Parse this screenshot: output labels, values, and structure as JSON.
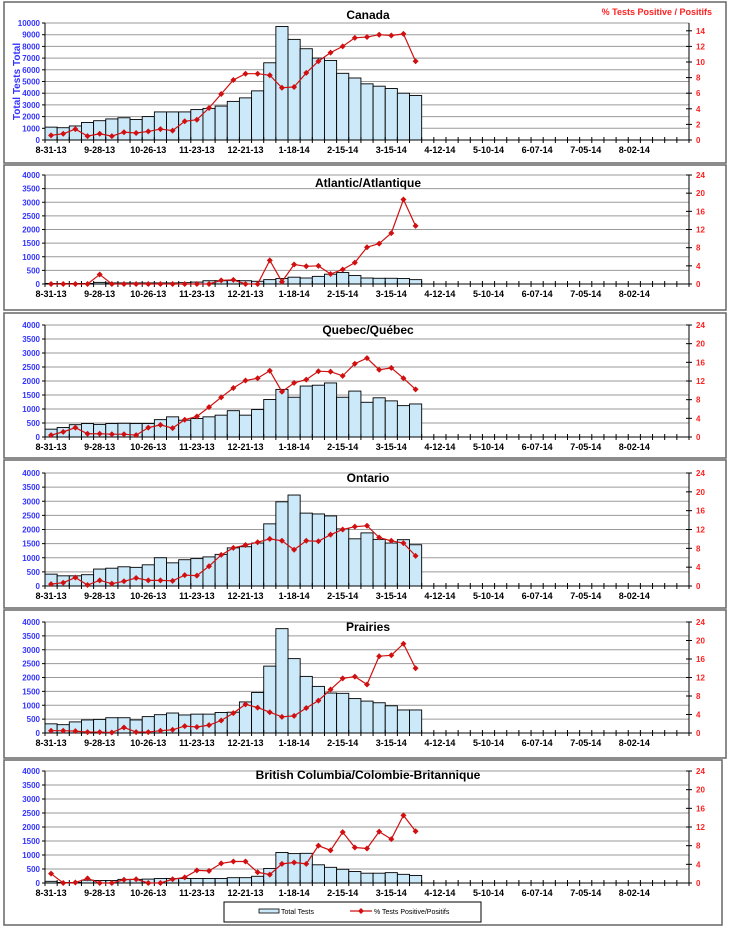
{
  "chart_data": [
    {
      "type": "bar+line",
      "title": "Canada",
      "ylabel": "Total Tests Total",
      "y2label": "% Tests Positive / Positifs",
      "ylim": [
        0,
        10000
      ],
      "ystep": 1000,
      "y2lim": [
        0,
        15
      ],
      "y2step": 2,
      "y2max_tick": 14,
      "bars": [
        1100,
        1050,
        1200,
        1500,
        1650,
        1800,
        1900,
        1750,
        2000,
        2400,
        2400,
        2400,
        2600,
        2700,
        2900,
        3300,
        3600,
        4200,
        6600,
        9700,
        8600,
        7800,
        7000,
        6800,
        5700,
        5300,
        4800,
        4600,
        4400,
        4000,
        3800
      ],
      "pct_positive": [
        0.6,
        0.8,
        1.4,
        0.5,
        0.8,
        0.5,
        1.0,
        0.9,
        1.1,
        1.4,
        1.2,
        2.4,
        2.6,
        4.1,
        5.9,
        7.7,
        8.5,
        8.5,
        8.3,
        6.7,
        6.8,
        8.6,
        10.1,
        11.2,
        12.0,
        13.1,
        13.2,
        13.5,
        13.4,
        13.6,
        10.1
      ]
    },
    {
      "type": "bar+line",
      "title": "Atlantic/Atlantique",
      "ylim": [
        0,
        4000
      ],
      "ystep": 500,
      "y2lim": [
        0,
        24
      ],
      "y2step": 4,
      "y2max_tick": 24,
      "bars": [
        20,
        20,
        20,
        20,
        60,
        40,
        40,
        40,
        40,
        40,
        40,
        50,
        70,
        120,
        120,
        130,
        120,
        100,
        160,
        200,
        250,
        220,
        280,
        360,
        420,
        310,
        220,
        210,
        210,
        200,
        160
      ],
      "pct_positive": [
        0,
        0,
        0,
        0,
        2.1,
        0,
        0,
        0,
        0,
        0,
        0,
        0,
        0,
        0,
        0.8,
        0.9,
        0,
        0,
        5.2,
        0.5,
        4.3,
        3.9,
        4.0,
        2.2,
        3.2,
        4.7,
        8.1,
        8.9,
        11.2,
        18.6,
        12.8
      ]
    },
    {
      "type": "bar+line",
      "title": "Quebec/Québec",
      "ylim": [
        0,
        4000
      ],
      "ystep": 500,
      "y2lim": [
        0,
        24
      ],
      "y2step": 4,
      "y2max_tick": 24,
      "bars": [
        280,
        340,
        440,
        480,
        450,
        480,
        490,
        480,
        480,
        620,
        720,
        600,
        660,
        720,
        780,
        940,
        780,
        980,
        1340,
        1700,
        1420,
        1820,
        1850,
        1930,
        1420,
        1640,
        1240,
        1400,
        1290,
        1120,
        1180
      ],
      "pct_positive": [
        0.4,
        1.1,
        2.0,
        0.7,
        0.7,
        0.6,
        0.6,
        0.4,
        2.0,
        2.6,
        1.9,
        3.7,
        4.4,
        6.4,
        8.5,
        10.5,
        12.1,
        12.6,
        14.2,
        9.7,
        11.6,
        12.3,
        14.1,
        14.0,
        13.1,
        15.7,
        16.9,
        14.4,
        14.8,
        12.6,
        10.2
      ]
    },
    {
      "type": "bar+line",
      "title": "Ontario",
      "ylim": [
        0,
        4000
      ],
      "ystep": 500,
      "y2lim": [
        0,
        24
      ],
      "y2step": 4,
      "y2max_tick": 24,
      "bars": [
        420,
        360,
        360,
        400,
        600,
        630,
        680,
        660,
        750,
        1000,
        820,
        930,
        970,
        1030,
        1120,
        1350,
        1390,
        1520,
        2200,
        2980,
        3220,
        2580,
        2550,
        2480,
        2020,
        1670,
        1880,
        1650,
        1520,
        1640,
        1460
      ],
      "pct_positive": [
        0.4,
        0.7,
        1.8,
        0.2,
        1.2,
        0.5,
        1.0,
        1.7,
        1.2,
        1.2,
        1.1,
        2.3,
        2.2,
        4.2,
        6.6,
        8.1,
        8.7,
        9.3,
        10.0,
        9.6,
        7.7,
        9.6,
        9.5,
        10.9,
        12.0,
        12.6,
        12.8,
        10.3,
        9.6,
        9.1,
        6.4
      ]
    },
    {
      "type": "bar+line",
      "title": "Prairies",
      "ylim": [
        0,
        4000
      ],
      "ystep": 500,
      "y2lim": [
        0,
        24
      ],
      "y2step": 4,
      "y2max_tick": 24,
      "bars": [
        330,
        300,
        400,
        470,
        490,
        550,
        550,
        470,
        590,
        660,
        720,
        650,
        680,
        680,
        740,
        750,
        1120,
        1460,
        2410,
        3760,
        2680,
        2040,
        1680,
        1440,
        1430,
        1240,
        1150,
        1090,
        980,
        830,
        830
      ],
      "pct_positive": [
        0.5,
        0.5,
        0.4,
        0.2,
        0.2,
        0.1,
        1.2,
        0.2,
        0.2,
        0.5,
        0.7,
        1.5,
        1.3,
        1.7,
        2.7,
        4.3,
        6.2,
        5.5,
        4.5,
        3.5,
        3.7,
        5.4,
        7.0,
        9.4,
        11.8,
        12.2,
        10.5,
        16.6,
        16.8,
        19.3,
        14.0
      ]
    },
    {
      "type": "bar+line",
      "title": "British Columbia/Colombie-Britannique",
      "ylim": [
        0,
        4000
      ],
      "ystep": 500,
      "y2lim": [
        0,
        24
      ],
      "y2step": 4,
      "y2max_tick": 24,
      "bars": [
        60,
        20,
        20,
        100,
        90,
        90,
        130,
        130,
        140,
        160,
        160,
        160,
        160,
        160,
        160,
        190,
        190,
        240,
        520,
        1090,
        1050,
        1060,
        650,
        560,
        490,
        410,
        350,
        350,
        370,
        310,
        270
      ],
      "pct_positive": [
        2.0,
        0,
        0.1,
        1.0,
        0,
        0,
        0.7,
        0.8,
        0,
        0,
        0.8,
        1.2,
        2.7,
        2.6,
        4.2,
        4.6,
        4.6,
        2.3,
        1.8,
        4.1,
        4.4,
        4.1,
        8.0,
        7.0,
        10.9,
        7.6,
        7.4,
        11.0,
        9.4,
        14.5,
        11.1
      ]
    }
  ],
  "x_axis": {
    "n_weeks": 53,
    "label_every": 4,
    "tick_labels": [
      "8-31-13",
      "9-28-13",
      "10-26-13",
      "11-23-13",
      "12-21-13",
      "1-18-14",
      "2-15-14",
      "3-15-14",
      "4-12-14",
      "5-10-14",
      "6-07-14",
      "7-05-14",
      "8-02-14"
    ]
  },
  "legend": {
    "bars": "Total Tests",
    "line": "% Tests Positive/Positifs"
  },
  "colors": {
    "bar_fill": "#cce9f9",
    "line": "#d01010",
    "left_axis": "#3333ff",
    "right_axis": "#ff2020"
  }
}
